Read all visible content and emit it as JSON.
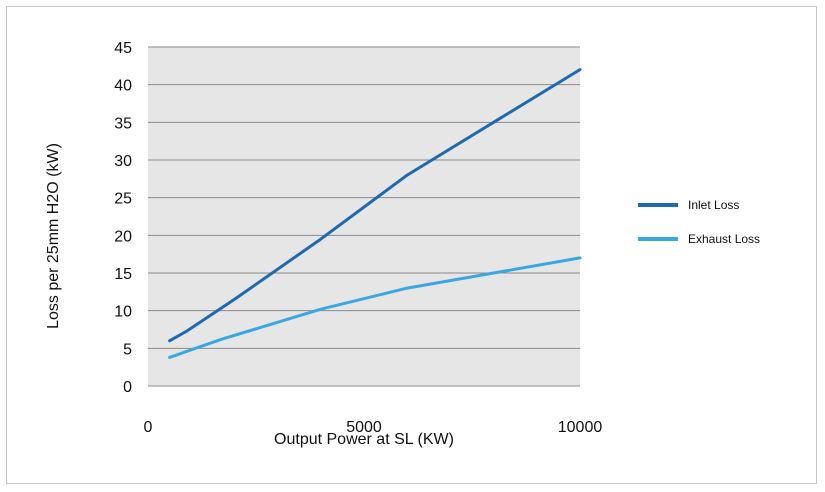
{
  "chart_data": {
    "type": "line",
    "title": "",
    "xlabel": "Output Power at SL (KW)",
    "ylabel": "Loss per 25mm H2O (kW)",
    "xlim": [
      0,
      10000
    ],
    "ylim": [
      0,
      45
    ],
    "x_ticks": [
      0,
      5000,
      10000
    ],
    "y_ticks": [
      0,
      5,
      10,
      15,
      20,
      25,
      30,
      35,
      40,
      45
    ],
    "grid": "horizontal",
    "plot_background": "#e6e6e6",
    "legend_position": "right",
    "series": [
      {
        "name": "Inlet Loss",
        "color": "#1f69b0",
        "points": [
          [
            500,
            6
          ],
          [
            900,
            7.3
          ],
          [
            2000,
            11.5
          ],
          [
            4000,
            19.5
          ],
          [
            6000,
            28
          ],
          [
            8000,
            35
          ],
          [
            10000,
            42
          ]
        ]
      },
      {
        "name": "Exhaust Loss",
        "color": "#3aa8e0",
        "points": [
          [
            500,
            3.8
          ],
          [
            1000,
            4.8
          ],
          [
            1700,
            6.2
          ],
          [
            4000,
            10.2
          ],
          [
            6000,
            13
          ],
          [
            8000,
            15
          ],
          [
            10000,
            17
          ]
        ]
      }
    ]
  }
}
